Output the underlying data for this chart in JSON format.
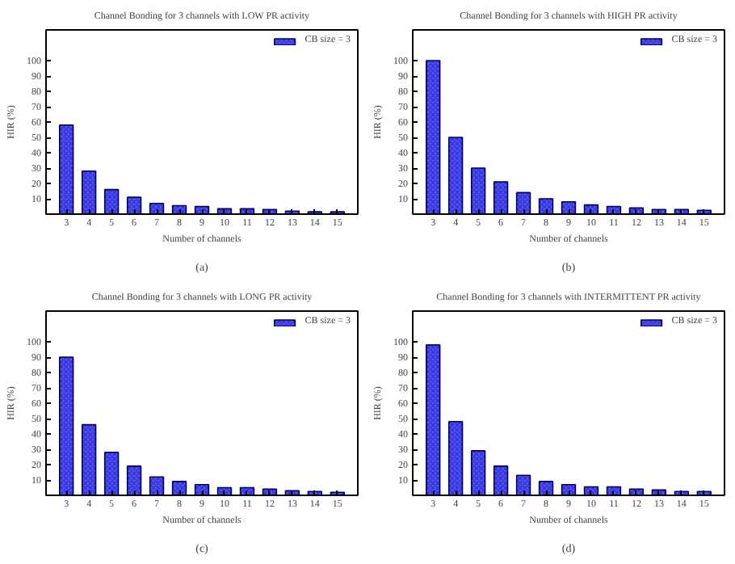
{
  "chart_data": [
    {
      "type": "bar",
      "title": "Channel Bonding for 3 channels with LOW PR activity",
      "xlabel": "Number of channels",
      "ylabel": "HIR (%)",
      "annotations": [
        "(a)"
      ],
      "categories": [
        "3",
        "4",
        "5",
        "6",
        "7",
        "8",
        "9",
        "10",
        "11",
        "12",
        "13",
        "14",
        "15"
      ],
      "series": [
        {
          "name": "CB size = 3",
          "color": "#5555ff",
          "values": [
            58,
            28,
            16,
            11,
            7,
            5.5,
            5,
            3.5,
            3.5,
            3,
            2,
            1.5,
            1.5
          ]
        }
      ],
      "ylim": [
        0,
        120
      ],
      "yticks": [
        10,
        20,
        30,
        40,
        50,
        60,
        70,
        80,
        90,
        100
      ],
      "grid": false,
      "legend": "top right"
    },
    {
      "type": "bar",
      "title": "Channel Bonding for 3 channels with HIGH PR activity",
      "xlabel": "Number of channels",
      "ylabel": "HIR (%)",
      "annotations": [
        "(b)"
      ],
      "categories": [
        "3",
        "4",
        "5",
        "6",
        "7",
        "8",
        "9",
        "10",
        "11",
        "12",
        "13",
        "14",
        "15"
      ],
      "series": [
        {
          "name": "CB size = 3",
          "color": "#5555ff",
          "values": [
            100,
            50,
            30,
            21,
            14,
            10,
            8,
            6,
            5,
            4,
            3,
            3,
            2.5
          ]
        }
      ],
      "ylim": [
        0,
        120
      ],
      "yticks": [
        10,
        20,
        30,
        40,
        50,
        60,
        70,
        80,
        90,
        100
      ],
      "grid": false,
      "legend": "top right"
    },
    {
      "type": "bar",
      "title": "Channel Bonding for 3 channels with LONG PR activity",
      "xlabel": "Number of channels",
      "ylabel": "HIR (%)",
      "annotations": [
        "(c)"
      ],
      "categories": [
        "3",
        "4",
        "5",
        "6",
        "7",
        "8",
        "9",
        "10",
        "11",
        "12",
        "13",
        "14",
        "15"
      ],
      "series": [
        {
          "name": "CB size = 3",
          "color": "#5555ff",
          "values": [
            90,
            46,
            28,
            19,
            12,
            9,
            7,
            5,
            5,
            4,
            3,
            2.5,
            2
          ]
        }
      ],
      "ylim": [
        0,
        120
      ],
      "yticks": [
        10,
        20,
        30,
        40,
        50,
        60,
        70,
        80,
        90,
        100
      ],
      "grid": false,
      "legend": "top right"
    },
    {
      "type": "bar",
      "title": "Channel Bonding for 3 channels with INTERMITTENT PR activity",
      "xlabel": "Number of channels",
      "ylabel": "HIR (%)",
      "annotations": [
        "(d)"
      ],
      "categories": [
        "3",
        "4",
        "5",
        "6",
        "7",
        "8",
        "9",
        "10",
        "11",
        "12",
        "13",
        "14",
        "15"
      ],
      "series": [
        {
          "name": "CB size = 3",
          "color": "#5555ff",
          "values": [
            98,
            48,
            29,
            19,
            13,
            9,
            7,
            5.5,
            5.5,
            4,
            3.5,
            2.5,
            2.5
          ]
        }
      ],
      "ylim": [
        0,
        120
      ],
      "yticks": [
        10,
        20,
        30,
        40,
        50,
        60,
        70,
        80,
        90,
        100
      ],
      "grid": false,
      "legend": "top right"
    }
  ]
}
